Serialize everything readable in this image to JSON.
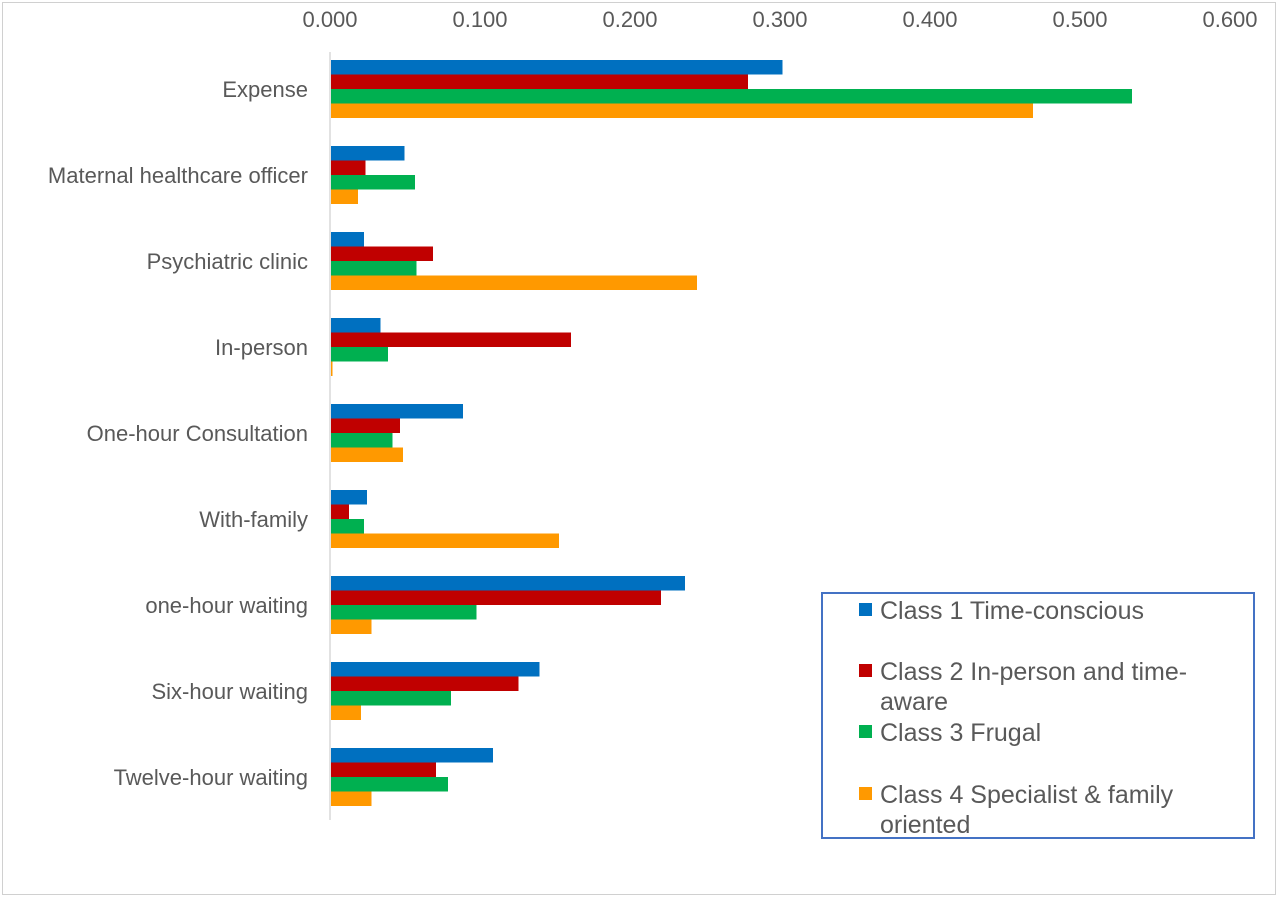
{
  "chart_data": {
    "type": "bar",
    "orientation": "horizontal",
    "title": "",
    "xlabel": "",
    "ylabel": "",
    "xlim": [
      0,
      0.6
    ],
    "x_ticks": [
      "0.000",
      "0.100",
      "0.200",
      "0.300",
      "0.400",
      "0.500",
      "0.600"
    ],
    "x_axis_position": "top",
    "grid": false,
    "legend_position": "bottom-right",
    "categories": [
      "Expense",
      "Maternal healthcare officer",
      "Psychiatric clinic",
      "In-person",
      "One-hour Consultation",
      "With-family",
      "one-hour waiting",
      "Six-hour waiting",
      "Twelve-hour waiting"
    ],
    "series": [
      {
        "name": "Class 1 Time-conscious",
        "legend_lines": [
          "Class 1 Time-conscious"
        ],
        "color": "#0070C0",
        "values": [
          0.301,
          0.049,
          0.022,
          0.033,
          0.088,
          0.024,
          0.236,
          0.139,
          0.108
        ]
      },
      {
        "name": "Class 2 In-person and time-aware",
        "legend_lines": [
          "Class 2 In-person and time-",
          "aware"
        ],
        "color": "#C00000",
        "values": [
          0.278,
          0.023,
          0.068,
          0.16,
          0.046,
          0.012,
          0.22,
          0.125,
          0.07
        ]
      },
      {
        "name": "Class 3 Frugal",
        "legend_lines": [
          "Class 3 Frugal"
        ],
        "color": "#00B050",
        "values": [
          0.534,
          0.056,
          0.057,
          0.038,
          0.041,
          0.022,
          0.097,
          0.08,
          0.078
        ]
      },
      {
        "name": "Class 4 Specialist & family oriented",
        "legend_lines": [
          "Class 4 Specialist & family",
          "oriented"
        ],
        "color": "#FF9900",
        "values": [
          0.468,
          0.018,
          0.244,
          0.001,
          0.048,
          0.152,
          0.027,
          0.02,
          0.027
        ]
      }
    ]
  }
}
